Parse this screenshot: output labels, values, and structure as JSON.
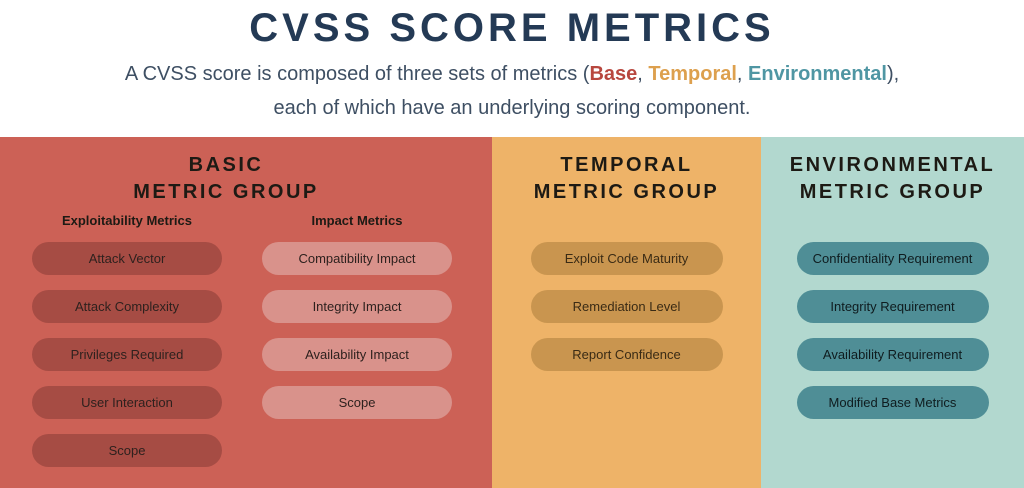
{
  "title": "CVSS SCORE METRICS",
  "subtitle": {
    "line1_prefix": "A CVSS score is composed of three sets of metrics (",
    "base_label": "Base",
    "separator1": ", ",
    "temporal_label": "Temporal",
    "separator2": ", ",
    "environmental_label": "Environmental",
    "line1_suffix": "),",
    "line2": "each of which have an underlying scoring component."
  },
  "groups": [
    {
      "title_line1": "BASIC",
      "title_line2": "METRIC GROUP",
      "columns": [
        {
          "header": "Exploitability Metrics",
          "items": [
            "Attack Vector",
            "Attack Complexity",
            "Privileges Required",
            "User Interaction",
            "Scope"
          ]
        },
        {
          "header": "Impact Metrics",
          "items": [
            "Compatibility Impact",
            "Integrity Impact",
            "Availability Impact",
            "Scope"
          ]
        }
      ]
    },
    {
      "title_line1": "TEMPORAL",
      "title_line2": "METRIC GROUP",
      "items": [
        "Exploit Code Maturity",
        "Remediation Level",
        "Report Confidence"
      ]
    },
    {
      "title_line1": "ENVIRONMENTAL",
      "title_line2": "METRIC GROUP",
      "items": [
        "Confidentiality Requirement",
        "Integrity Requirement",
        "Availability Requirement",
        "Modified Base Metrics"
      ]
    }
  ],
  "colors": {
    "title_navy": "#243a55",
    "subtitle_navy": "#3e4f63",
    "accent_base": "#b8473f",
    "accent_temporal": "#dda04e",
    "accent_environmental": "#4f96a3",
    "panel_red": "#cc6156",
    "panel_orange": "#eeb368",
    "panel_teal": "#b2d8cf",
    "pill_red_dark": "#a64c44",
    "pill_red_light": "#d9928b",
    "pill_orange": "#c9954f",
    "pill_teal": "#4f8e96",
    "heading_dark": "#1d1a14",
    "pill_text_dark": "#2e211e",
    "pill_text_orange": "#3a2b15",
    "pill_text_teal": "#0f1c1f"
  }
}
